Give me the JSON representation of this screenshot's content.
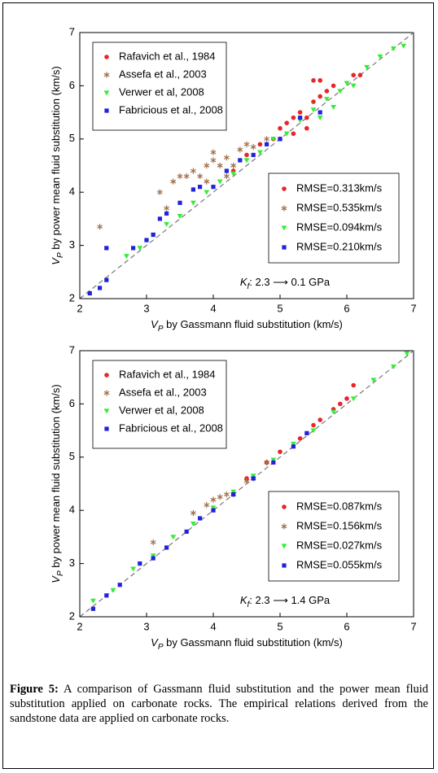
{
  "chart_data": [
    {
      "type": "scatter",
      "xlabel": [
        "V",
        "P",
        " by Gassmann fluid substitution (km/s)"
      ],
      "ylabel": [
        "V",
        "P",
        " by power mean fluid substitution (km/s)"
      ],
      "annotation": [
        "K",
        "f",
        ": 2.3 ⟶ 0.1 GPa"
      ],
      "xlim": [
        2,
        7
      ],
      "ylim": [
        2,
        7
      ],
      "xticks": [
        2,
        3,
        4,
        5,
        6,
        7
      ],
      "yticks": [
        2,
        3,
        4,
        5,
        6,
        7
      ],
      "series": [
        {
          "name": "Rafavich et al., 1984",
          "color": "#e8262a",
          "marker": "circle",
          "rmse_label": "RMSE=0.313km/s",
          "x": [
            4.5,
            4.7,
            4.9,
            5.0,
            5.1,
            5.2,
            5.3,
            5.4,
            5.5,
            5.6,
            5.5,
            5.6,
            5.8,
            6.1,
            5.2,
            5.0,
            5.4,
            5.7,
            6.2,
            4.3
          ],
          "values": [
            4.7,
            4.9,
            5.0,
            5.2,
            5.3,
            5.4,
            5.5,
            5.4,
            5.7,
            5.8,
            6.1,
            6.1,
            6.0,
            6.2,
            5.1,
            5.0,
            5.2,
            5.9,
            6.2,
            4.4
          ]
        },
        {
          "name": "Assefa et al., 2003",
          "color": "#a0704a",
          "marker": "star",
          "rmse_label": "RMSE=0.535km/s",
          "x": [
            2.3,
            3.2,
            3.4,
            3.5,
            3.6,
            3.7,
            3.8,
            3.9,
            4.0,
            4.0,
            4.1,
            4.2,
            4.3,
            4.4,
            4.6,
            4.8,
            3.3,
            3.9,
            4.2,
            4.5
          ],
          "values": [
            3.35,
            4.0,
            4.2,
            4.3,
            4.3,
            4.4,
            4.3,
            4.5,
            4.75,
            4.6,
            4.5,
            4.65,
            4.5,
            4.8,
            4.85,
            5.0,
            3.7,
            4.2,
            4.3,
            4.9
          ]
        },
        {
          "name": "Verwer et al, 2008",
          "color": "#33ee33",
          "marker": "triangle",
          "rmse_label": "RMSE=0.094km/s",
          "x": [
            2.7,
            2.9,
            3.1,
            3.3,
            3.5,
            3.7,
            3.9,
            4.1,
            4.3,
            4.5,
            4.7,
            4.9,
            5.1,
            5.3,
            5.5,
            5.7,
            5.9,
            6.1,
            6.3,
            6.5,
            6.7,
            6.85,
            6.0,
            5.8,
            5.6
          ],
          "values": [
            2.8,
            2.95,
            3.2,
            3.4,
            3.55,
            3.8,
            4.0,
            4.2,
            4.35,
            4.6,
            4.75,
            5.0,
            5.1,
            5.35,
            5.55,
            5.75,
            5.9,
            6.0,
            6.35,
            6.55,
            6.7,
            6.75,
            6.05,
            5.6,
            5.4
          ]
        },
        {
          "name": "Fabricious et al., 2008",
          "color": "#2222dd",
          "marker": "square",
          "rmse_label": "RMSE=0.210km/s",
          "x": [
            2.15,
            2.3,
            2.4,
            2.4,
            2.8,
            3.0,
            3.1,
            3.2,
            3.3,
            3.5,
            3.7,
            3.8,
            4.0,
            4.2,
            4.4,
            4.6,
            4.8,
            5.0,
            5.3,
            5.6
          ],
          "values": [
            2.1,
            2.2,
            2.35,
            2.95,
            2.95,
            3.1,
            3.2,
            3.5,
            3.6,
            3.8,
            4.05,
            4.1,
            4.1,
            4.4,
            4.6,
            4.7,
            4.9,
            5.0,
            5.4,
            5.5
          ]
        }
      ]
    },
    {
      "type": "scatter",
      "xlabel": [
        "V",
        "P",
        " by Gassmann fluid substitution (km/s)"
      ],
      "ylabel": [
        "V",
        "P",
        " by power mean fluid substitution (km/s)"
      ],
      "annotation": [
        "K",
        "f",
        ": 2.3 ⟶ 1.4 GPa"
      ],
      "xlim": [
        2,
        7
      ],
      "ylim": [
        2,
        7
      ],
      "xticks": [
        2,
        3,
        4,
        5,
        6,
        7
      ],
      "yticks": [
        2,
        3,
        4,
        5,
        6,
        7
      ],
      "series": [
        {
          "name": "Rafavich et al., 1984",
          "color": "#e8262a",
          "marker": "circle",
          "rmse_label": "RMSE=0.087km/s",
          "x": [
            4.8,
            5.0,
            5.3,
            5.5,
            5.8,
            5.9,
            6.0,
            6.1,
            4.5,
            5.6
          ],
          "values": [
            4.9,
            5.1,
            5.35,
            5.6,
            5.9,
            6.0,
            6.1,
            6.35,
            4.6,
            5.7
          ]
        },
        {
          "name": "Assefa et al., 2003",
          "color": "#a0704a",
          "marker": "star",
          "rmse_label": "RMSE=0.156km/s",
          "x": [
            3.1,
            3.7,
            3.9,
            4.0,
            4.1,
            4.2,
            4.3,
            4.5,
            4.6,
            4.8
          ],
          "values": [
            3.4,
            3.95,
            4.1,
            4.2,
            4.25,
            4.3,
            4.3,
            4.55,
            4.6,
            4.9
          ]
        },
        {
          "name": "Verwer et al, 2008",
          "color": "#33ee33",
          "marker": "triangle",
          "rmse_label": "RMSE=0.027km/s",
          "x": [
            2.2,
            2.5,
            2.8,
            3.1,
            3.4,
            3.7,
            4.0,
            4.3,
            4.6,
            4.9,
            5.2,
            5.5,
            5.8,
            6.1,
            6.4,
            6.7,
            6.9
          ],
          "values": [
            2.3,
            2.5,
            2.9,
            3.15,
            3.5,
            3.75,
            4.05,
            4.35,
            4.65,
            4.95,
            5.25,
            5.5,
            5.85,
            6.1,
            6.45,
            6.7,
            6.95
          ]
        },
        {
          "name": "Fabricious et al., 2008",
          "color": "#2222dd",
          "marker": "square",
          "rmse_label": "RMSE=0.055km/s",
          "x": [
            2.2,
            2.4,
            2.6,
            2.9,
            3.1,
            3.3,
            3.6,
            3.8,
            4.0,
            4.3,
            4.6,
            4.9,
            5.2,
            5.4
          ],
          "values": [
            2.15,
            2.4,
            2.6,
            3.0,
            3.1,
            3.3,
            3.6,
            3.85,
            4.0,
            4.3,
            4.6,
            4.9,
            5.2,
            5.45
          ]
        }
      ]
    }
  ],
  "caption": {
    "label": "Figure 5:",
    "text": " A comparison of Gassmann fluid substitution and the power mean fluid substitution applied on carbonate rocks. The empirical relations derived from the sandstone data are applied on carbonate rocks."
  }
}
